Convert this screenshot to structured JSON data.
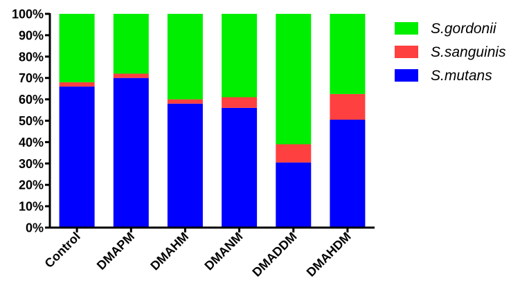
{
  "chart_data": {
    "type": "bar",
    "stacked": true,
    "categories": [
      "Control",
      "DMAPM",
      "DMAHM",
      "DMANM",
      "DMADDM",
      "DMAHDM"
    ],
    "series": [
      {
        "name": "S.mutans",
        "color": "#0000ff",
        "values": [
          66,
          70,
          58,
          56,
          30.5,
          50.5
        ]
      },
      {
        "name": "S.sanguinis",
        "color": "#ff4040",
        "values": [
          2,
          2,
          2,
          5,
          8.5,
          12
        ]
      },
      {
        "name": "S.gordonii",
        "color": "#00ee00",
        "values": [
          32,
          28,
          40,
          39,
          61,
          37.5
        ]
      }
    ],
    "legend_order": [
      "S.gordonii",
      "S.sanguinis",
      "S.mutans"
    ],
    "ylim": [
      0,
      100
    ],
    "yticks": [
      "0%",
      "10%",
      "20%",
      "30%",
      "40%",
      "50%",
      "60%",
      "70%",
      "80%",
      "90%",
      "100%"
    ],
    "xlabel": "",
    "ylabel": "",
    "title": "",
    "legend_position": "right",
    "grid": false
  }
}
